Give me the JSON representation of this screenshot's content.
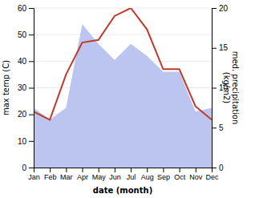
{
  "chart_data": {
    "type": "line",
    "xlabel": "date (month)",
    "ylabel": "max temp (C)",
    "y2label": "med. precipitation\n(kg/m2)",
    "categories": [
      "Jan",
      "Feb",
      "Mar",
      "Apr",
      "May",
      "Jun",
      "Jul",
      "Aug",
      "Sep",
      "Oct",
      "Nov",
      "Dec"
    ],
    "series": [
      {
        "type": "area",
        "axis": "y2",
        "color": "#bcc5f0",
        "values": [
          7.5,
          6.0,
          7.5,
          18.0,
          15.5,
          13.5,
          15.5,
          14.0,
          12.0,
          12.0,
          7.0,
          7.5
        ]
      },
      {
        "type": "line",
        "color": "#c0392b",
        "values": [
          21,
          18,
          35,
          47,
          48,
          57,
          60,
          52,
          37,
          37,
          23,
          18
        ]
      }
    ],
    "ylim": [
      0,
      60
    ],
    "yticks": [
      0,
      10,
      20,
      30,
      40,
      50,
      60
    ],
    "y2lim": [
      0,
      20
    ],
    "y2ticks": [
      0,
      5,
      10,
      15,
      20
    ],
    "grid": true
  }
}
